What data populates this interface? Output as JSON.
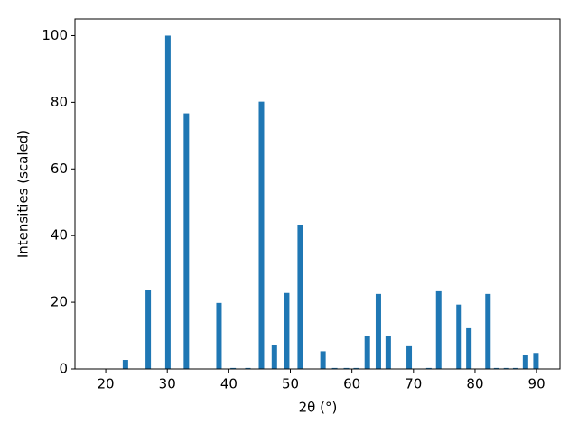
{
  "chart_data": {
    "type": "bar",
    "x_label": "2θ (°)",
    "y_label": "Intensities (scaled)",
    "x": [
      23.2,
      26.9,
      30.1,
      33.1,
      38.4,
      40.7,
      43.1,
      45.3,
      47.4,
      49.4,
      51.6,
      55.3,
      57.2,
      59.1,
      60.7,
      62.5,
      64.3,
      65.9,
      69.3,
      72.5,
      74.1,
      77.4,
      79.0,
      82.1,
      83.5,
      85.1,
      86.6,
      88.2,
      89.9
    ],
    "values": [
      2.7,
      23.8,
      100,
      76.7,
      19.8,
      0.3,
      0.3,
      80.2,
      7.2,
      22.8,
      43.3,
      5.3,
      0.3,
      0.3,
      0.3,
      10,
      22.5,
      10,
      6.8,
      0.3,
      23.3,
      19.3,
      12.2,
      22.5,
      0.3,
      0.3,
      0.3,
      4.3,
      4.8
    ],
    "color": "#1f77b4",
    "xlim": [
      15,
      93.8
    ],
    "ylim": [
      0,
      105
    ],
    "xticks": [
      20,
      30,
      40,
      50,
      60,
      70,
      80,
      90
    ],
    "yticks": [
      0,
      20,
      40,
      60,
      80,
      100
    ]
  }
}
